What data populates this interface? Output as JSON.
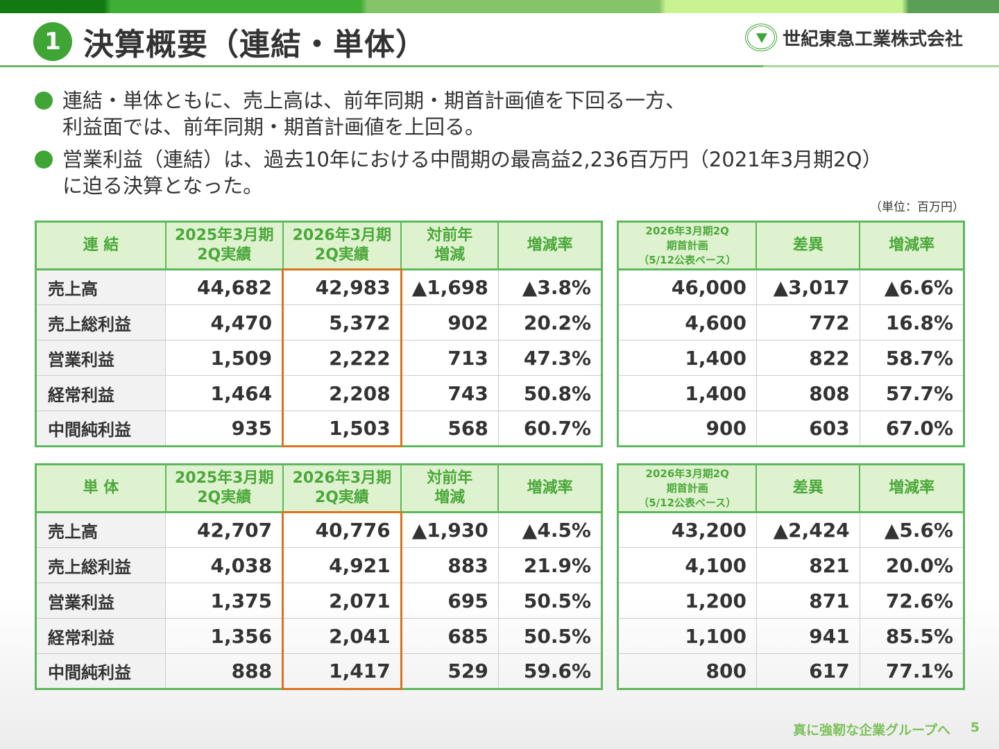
{
  "header": {
    "number": "1",
    "title": "決算概要（連結・単体）",
    "company": "世紀東急工業株式会社"
  },
  "bullets": [
    "連結・単体ともに、売上高は、前年同期・期首計画値を下回る一方、\n利益面では、前年同期・期首計画値を上回る。",
    "営業利益（連結）は、過去10年における中間期の最高益2,236百万円（2021年3月期2Q）\nに迫る決算となった。"
  ],
  "unit": "（単位：百万円）",
  "colors": {
    "accent": "#3fa535",
    "header_bg": "#dff2cf",
    "highlight": "#d9731e"
  },
  "tables": [
    {
      "left_headers": [
        "連 結",
        "2025年3月期\n2Q実績",
        "2026年3月期\n2Q実績",
        "対前年\n増減",
        "増減率"
      ],
      "right_headers": [
        "2026年3月期2Q\n期首計画\n（5/12公表ベース）",
        "差異",
        "増減率"
      ],
      "rows": [
        [
          "売上高",
          "44,682",
          "42,983",
          "▲1,698",
          "▲3.8%",
          "46,000",
          "▲3,017",
          "▲6.6%"
        ],
        [
          "売上総利益",
          "4,470",
          "5,372",
          "902",
          "20.2%",
          "4,600",
          "772",
          "16.8%"
        ],
        [
          "営業利益",
          "1,509",
          "2,222",
          "713",
          "47.3%",
          "1,400",
          "822",
          "58.7%"
        ],
        [
          "経常利益",
          "1,464",
          "2,208",
          "743",
          "50.8%",
          "1,400",
          "808",
          "57.7%"
        ],
        [
          "中間純利益",
          "935",
          "1,503",
          "568",
          "60.7%",
          "900",
          "603",
          "67.0%"
        ]
      ]
    },
    {
      "left_headers": [
        "単 体",
        "2025年3月期\n2Q実績",
        "2026年3月期\n2Q実績",
        "対前年\n増減",
        "増減率"
      ],
      "right_headers": [
        "2026年3月期2Q\n期首計画\n（5/12公表ベース）",
        "差異",
        "増減率"
      ],
      "rows": [
        [
          "売上高",
          "42,707",
          "40,776",
          "▲1,930",
          "▲4.5%",
          "43,200",
          "▲2,424",
          "▲5.6%"
        ],
        [
          "売上総利益",
          "4,038",
          "4,921",
          "883",
          "21.9%",
          "4,100",
          "821",
          "20.0%"
        ],
        [
          "営業利益",
          "1,375",
          "2,071",
          "695",
          "50.5%",
          "1,200",
          "871",
          "72.6%"
        ],
        [
          "経常利益",
          "1,356",
          "2,041",
          "685",
          "50.5%",
          "1,100",
          "941",
          "85.5%"
        ],
        [
          "中間純利益",
          "888",
          "1,417",
          "529",
          "59.6%",
          "800",
          "617",
          "77.1%"
        ]
      ]
    }
  ],
  "footer": {
    "slogan": "真に強靭な企業グループへ",
    "page": "5"
  }
}
